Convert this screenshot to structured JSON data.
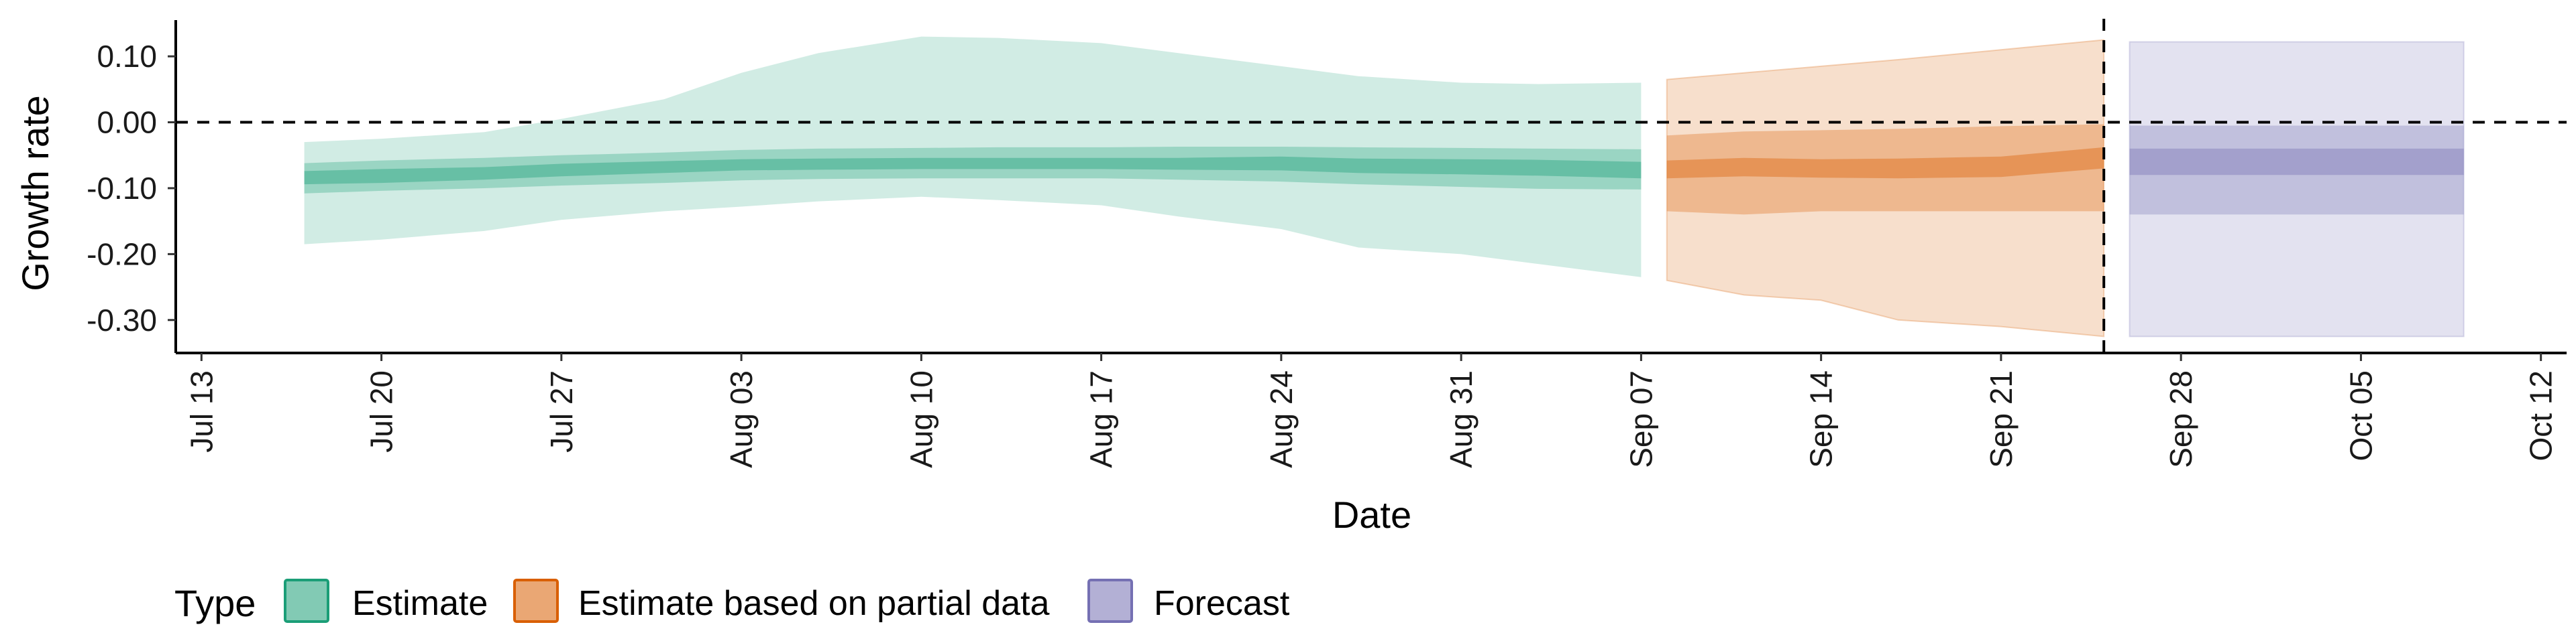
{
  "chart_data": {
    "type": "area",
    "xlabel": "Date",
    "ylabel": "Growth rate",
    "xlim": [
      "2020-07-12",
      "2020-10-13"
    ],
    "ylim": [
      -0.35,
      0.155
    ],
    "x_ticks": [
      "2020-07-13",
      "2020-07-20",
      "2020-07-27",
      "2020-08-03",
      "2020-08-10",
      "2020-08-17",
      "2020-08-24",
      "2020-08-31",
      "2020-09-07",
      "2020-09-14",
      "2020-09-21",
      "2020-09-28",
      "2020-10-05",
      "2020-10-12"
    ],
    "x_tick_labels": [
      "Jul 13",
      "Jul 20",
      "Jul 27",
      "Aug 03",
      "Aug 10",
      "Aug 17",
      "Aug 24",
      "Aug 31",
      "Sep 07",
      "Sep 14",
      "Sep 21",
      "Sep 28",
      "Oct 05",
      "Oct 12"
    ],
    "y_ticks": [
      0.1,
      0.0,
      -0.1,
      -0.2,
      -0.3
    ],
    "y_tick_labels": [
      "0.10",
      "0.00",
      "-0.10",
      "-0.20",
      "-0.30"
    ],
    "reference_lines": {
      "horizontal_y": 0.0,
      "vertical_x": "2020-09-25"
    },
    "grid": false,
    "legend": {
      "title": "Type",
      "position": "bottom",
      "entries": [
        "Estimate",
        "Estimate based on partial data",
        "Forecast"
      ]
    },
    "colors": {
      "Estimate": "#1b9e77",
      "Estimate based on partial data": "#d95f02",
      "Forecast": "#7570b3"
    },
    "series": [
      {
        "name": "Estimate",
        "x": [
          "2020-07-17",
          "2020-07-20",
          "2020-07-24",
          "2020-07-27",
          "2020-07-31",
          "2020-08-03",
          "2020-08-06",
          "2020-08-10",
          "2020-08-13",
          "2020-08-17",
          "2020-08-20",
          "2020-08-24",
          "2020-08-27",
          "2020-08-31",
          "2020-09-03",
          "2020-09-07"
        ],
        "median": [
          -0.085,
          -0.082,
          -0.078,
          -0.072,
          -0.068,
          -0.064,
          -0.064,
          -0.062,
          -0.062,
          -0.062,
          -0.063,
          -0.062,
          -0.066,
          -0.068,
          -0.069,
          -0.072
        ],
        "q25": [
          -0.094,
          -0.092,
          -0.087,
          -0.082,
          -0.077,
          -0.073,
          -0.072,
          -0.071,
          -0.071,
          -0.071,
          -0.072,
          -0.073,
          -0.077,
          -0.079,
          -0.081,
          -0.085
        ],
        "q75": [
          -0.074,
          -0.071,
          -0.068,
          -0.063,
          -0.059,
          -0.056,
          -0.055,
          -0.054,
          -0.054,
          -0.054,
          -0.054,
          -0.052,
          -0.055,
          -0.056,
          -0.057,
          -0.06
        ],
        "q05": [
          -0.108,
          -0.104,
          -0.1,
          -0.096,
          -0.092,
          -0.088,
          -0.086,
          -0.085,
          -0.085,
          -0.085,
          -0.087,
          -0.09,
          -0.094,
          -0.098,
          -0.101,
          -0.102
        ],
        "q95": [
          -0.062,
          -0.058,
          -0.054,
          -0.05,
          -0.046,
          -0.042,
          -0.04,
          -0.039,
          -0.038,
          -0.038,
          -0.037,
          -0.037,
          -0.038,
          -0.039,
          -0.04,
          -0.041
        ],
        "lower90": [
          -0.185,
          -0.178,
          -0.165,
          -0.148,
          -0.135,
          -0.128,
          -0.12,
          -0.113,
          -0.118,
          -0.126,
          -0.143,
          -0.162,
          -0.19,
          -0.2,
          -0.215,
          -0.235
        ],
        "upper90": [
          -0.03,
          -0.025,
          -0.015,
          0.005,
          0.035,
          0.075,
          0.105,
          0.13,
          0.128,
          0.12,
          0.105,
          0.085,
          0.07,
          0.06,
          0.058,
          0.06
        ]
      },
      {
        "name": "Estimate based on partial data",
        "x": [
          "2020-09-08",
          "2020-09-11",
          "2020-09-14",
          "2020-09-17",
          "2020-09-21",
          "2020-09-25"
        ],
        "median": [
          -0.072,
          -0.068,
          -0.07,
          -0.07,
          -0.068,
          -0.055
        ],
        "q25": [
          -0.085,
          -0.082,
          -0.084,
          -0.085,
          -0.083,
          -0.07
        ],
        "q75": [
          -0.058,
          -0.054,
          -0.056,
          -0.055,
          -0.052,
          -0.038
        ],
        "q05": [
          -0.135,
          -0.14,
          -0.135,
          -0.135,
          -0.135,
          -0.135
        ],
        "q95": [
          -0.02,
          -0.014,
          -0.012,
          -0.01,
          -0.006,
          -0.003
        ],
        "lower90": [
          -0.24,
          -0.262,
          -0.27,
          -0.3,
          -0.31,
          -0.325
        ],
        "upper90": [
          0.065,
          0.075,
          0.085,
          0.095,
          0.11,
          0.125
        ]
      },
      {
        "name": "Forecast",
        "x": [
          "2020-09-26",
          "2020-10-09"
        ],
        "q25": [
          -0.08,
          -0.08
        ],
        "q75": [
          -0.04,
          -0.04
        ],
        "q05": [
          -0.14,
          -0.14
        ],
        "q95": [
          -0.005,
          -0.005
        ],
        "lower90": [
          -0.325,
          -0.325
        ],
        "upper90": [
          0.122,
          0.122
        ]
      }
    ]
  }
}
